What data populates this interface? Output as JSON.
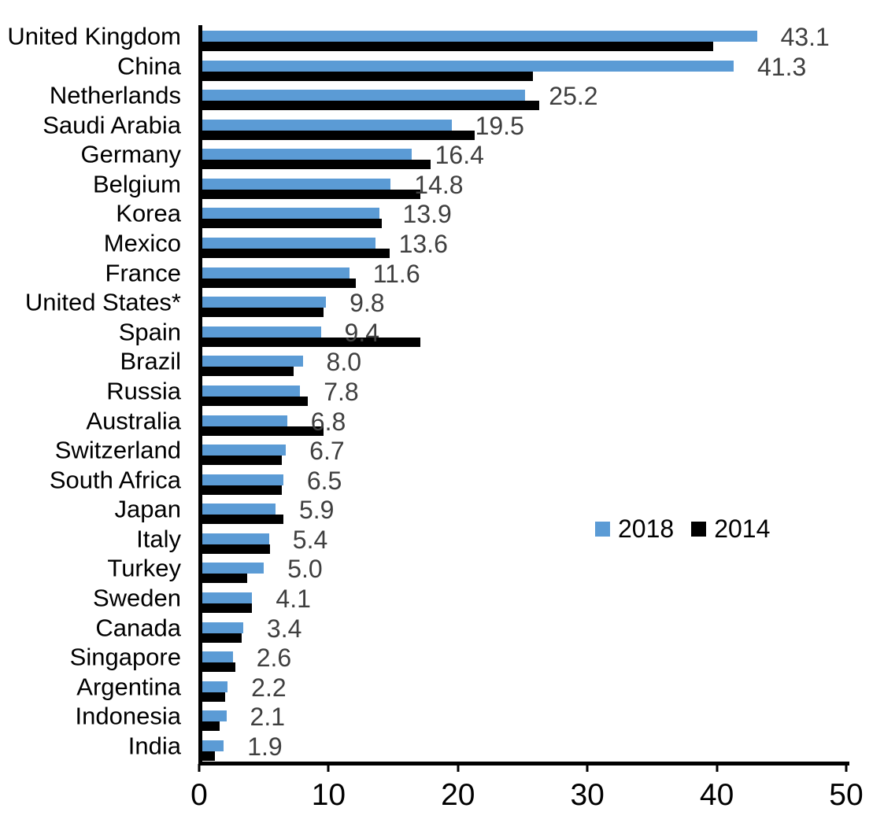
{
  "chart_data": {
    "type": "bar",
    "orientation": "horizontal",
    "title": "",
    "xlabel": "",
    "ylabel": "",
    "categories": [
      "United Kingdom",
      "China",
      "Netherlands",
      "Saudi Arabia",
      "Germany",
      "Belgium",
      "Korea",
      "Mexico",
      "France",
      "United States*",
      "Spain",
      "Brazil",
      "Russia",
      "Australia",
      "Switzerland",
      "South Africa",
      "Japan",
      "Italy",
      "Turkey",
      "Sweden",
      "Canada",
      "Singapore",
      "Argentina",
      "Indonesia",
      "India"
    ],
    "series": [
      {
        "name": "2018",
        "color": "#5B9BD5",
        "values": [
          43.1,
          41.3,
          25.2,
          19.5,
          16.4,
          14.8,
          13.9,
          13.6,
          11.6,
          9.8,
          9.4,
          8.0,
          7.8,
          6.8,
          6.7,
          6.5,
          5.9,
          5.4,
          5.0,
          4.1,
          3.4,
          2.6,
          2.2,
          2.1,
          1.9
        ],
        "data_labels_shown": true
      },
      {
        "name": "2014",
        "color": "#000000",
        "values": [
          39.7,
          25.8,
          26.3,
          21.3,
          17.9,
          17.1,
          14.1,
          14.7,
          12.1,
          9.6,
          17.1,
          7.3,
          8.4,
          9.6,
          6.4,
          6.4,
          6.5,
          5.5,
          3.7,
          4.1,
          3.3,
          2.8,
          2.0,
          1.6,
          1.2
        ],
        "data_labels_shown": false
      }
    ],
    "value_label_color": "#3f3f3f",
    "axis_color": "#000000",
    "x_axis": {
      "min": 0,
      "max": 50,
      "ticks": [
        0,
        10,
        20,
        30,
        40,
        50
      ]
    },
    "grid": false,
    "legend": {
      "position": "middle-right",
      "entries": [
        "2018",
        "2014"
      ]
    }
  }
}
